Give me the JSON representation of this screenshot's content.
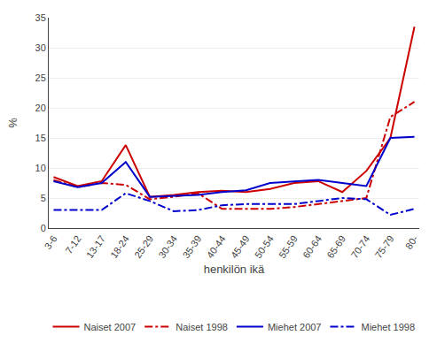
{
  "chart_data": {
    "type": "line",
    "xlabel": "henkilön ikä",
    "ylabel": "%",
    "categories": [
      "3-6",
      "7-12",
      "13-17",
      "18-24",
      "25-29",
      "30-34",
      "35-39",
      "40-44",
      "45-49",
      "50-54",
      "55-59",
      "60-64",
      "65-69",
      "70-74",
      "75-79",
      "80-"
    ],
    "series": [
      {
        "name": "Naiset 2007",
        "color": "#cc0000",
        "line_style": "solid",
        "values": [
          8.5,
          7.0,
          7.8,
          13.8,
          5.2,
          5.5,
          6.0,
          6.2,
          6.0,
          6.5,
          7.5,
          7.8,
          6.0,
          9.5,
          15.0,
          33.5
        ]
      },
      {
        "name": "Naiset 1998",
        "color": "#cc0000",
        "line_style": "dashdot",
        "values": [
          8.0,
          6.8,
          7.5,
          7.2,
          4.8,
          5.2,
          5.8,
          3.2,
          3.2,
          3.2,
          3.5,
          4.0,
          4.5,
          5.0,
          18.5,
          21.0
        ]
      },
      {
        "name": "Miehet 2007",
        "color": "#0000cc",
        "line_style": "solid",
        "values": [
          7.8,
          6.8,
          7.5,
          11.0,
          5.2,
          5.3,
          5.5,
          6.0,
          6.3,
          7.5,
          7.8,
          8.0,
          7.5,
          7.0,
          15.0,
          15.2
        ]
      },
      {
        "name": "Miehet 1998",
        "color": "#0000cc",
        "line_style": "dashdot",
        "values": [
          3.0,
          3.0,
          3.0,
          5.8,
          4.5,
          2.8,
          3.0,
          3.8,
          4.0,
          4.0,
          4.0,
          4.5,
          5.0,
          4.8,
          2.2,
          3.2
        ]
      }
    ],
    "ylim": [
      0,
      35
    ],
    "yticks": [
      0,
      5,
      10,
      15,
      20,
      25,
      30,
      35
    ],
    "grid": true,
    "legend": "bottom"
  }
}
